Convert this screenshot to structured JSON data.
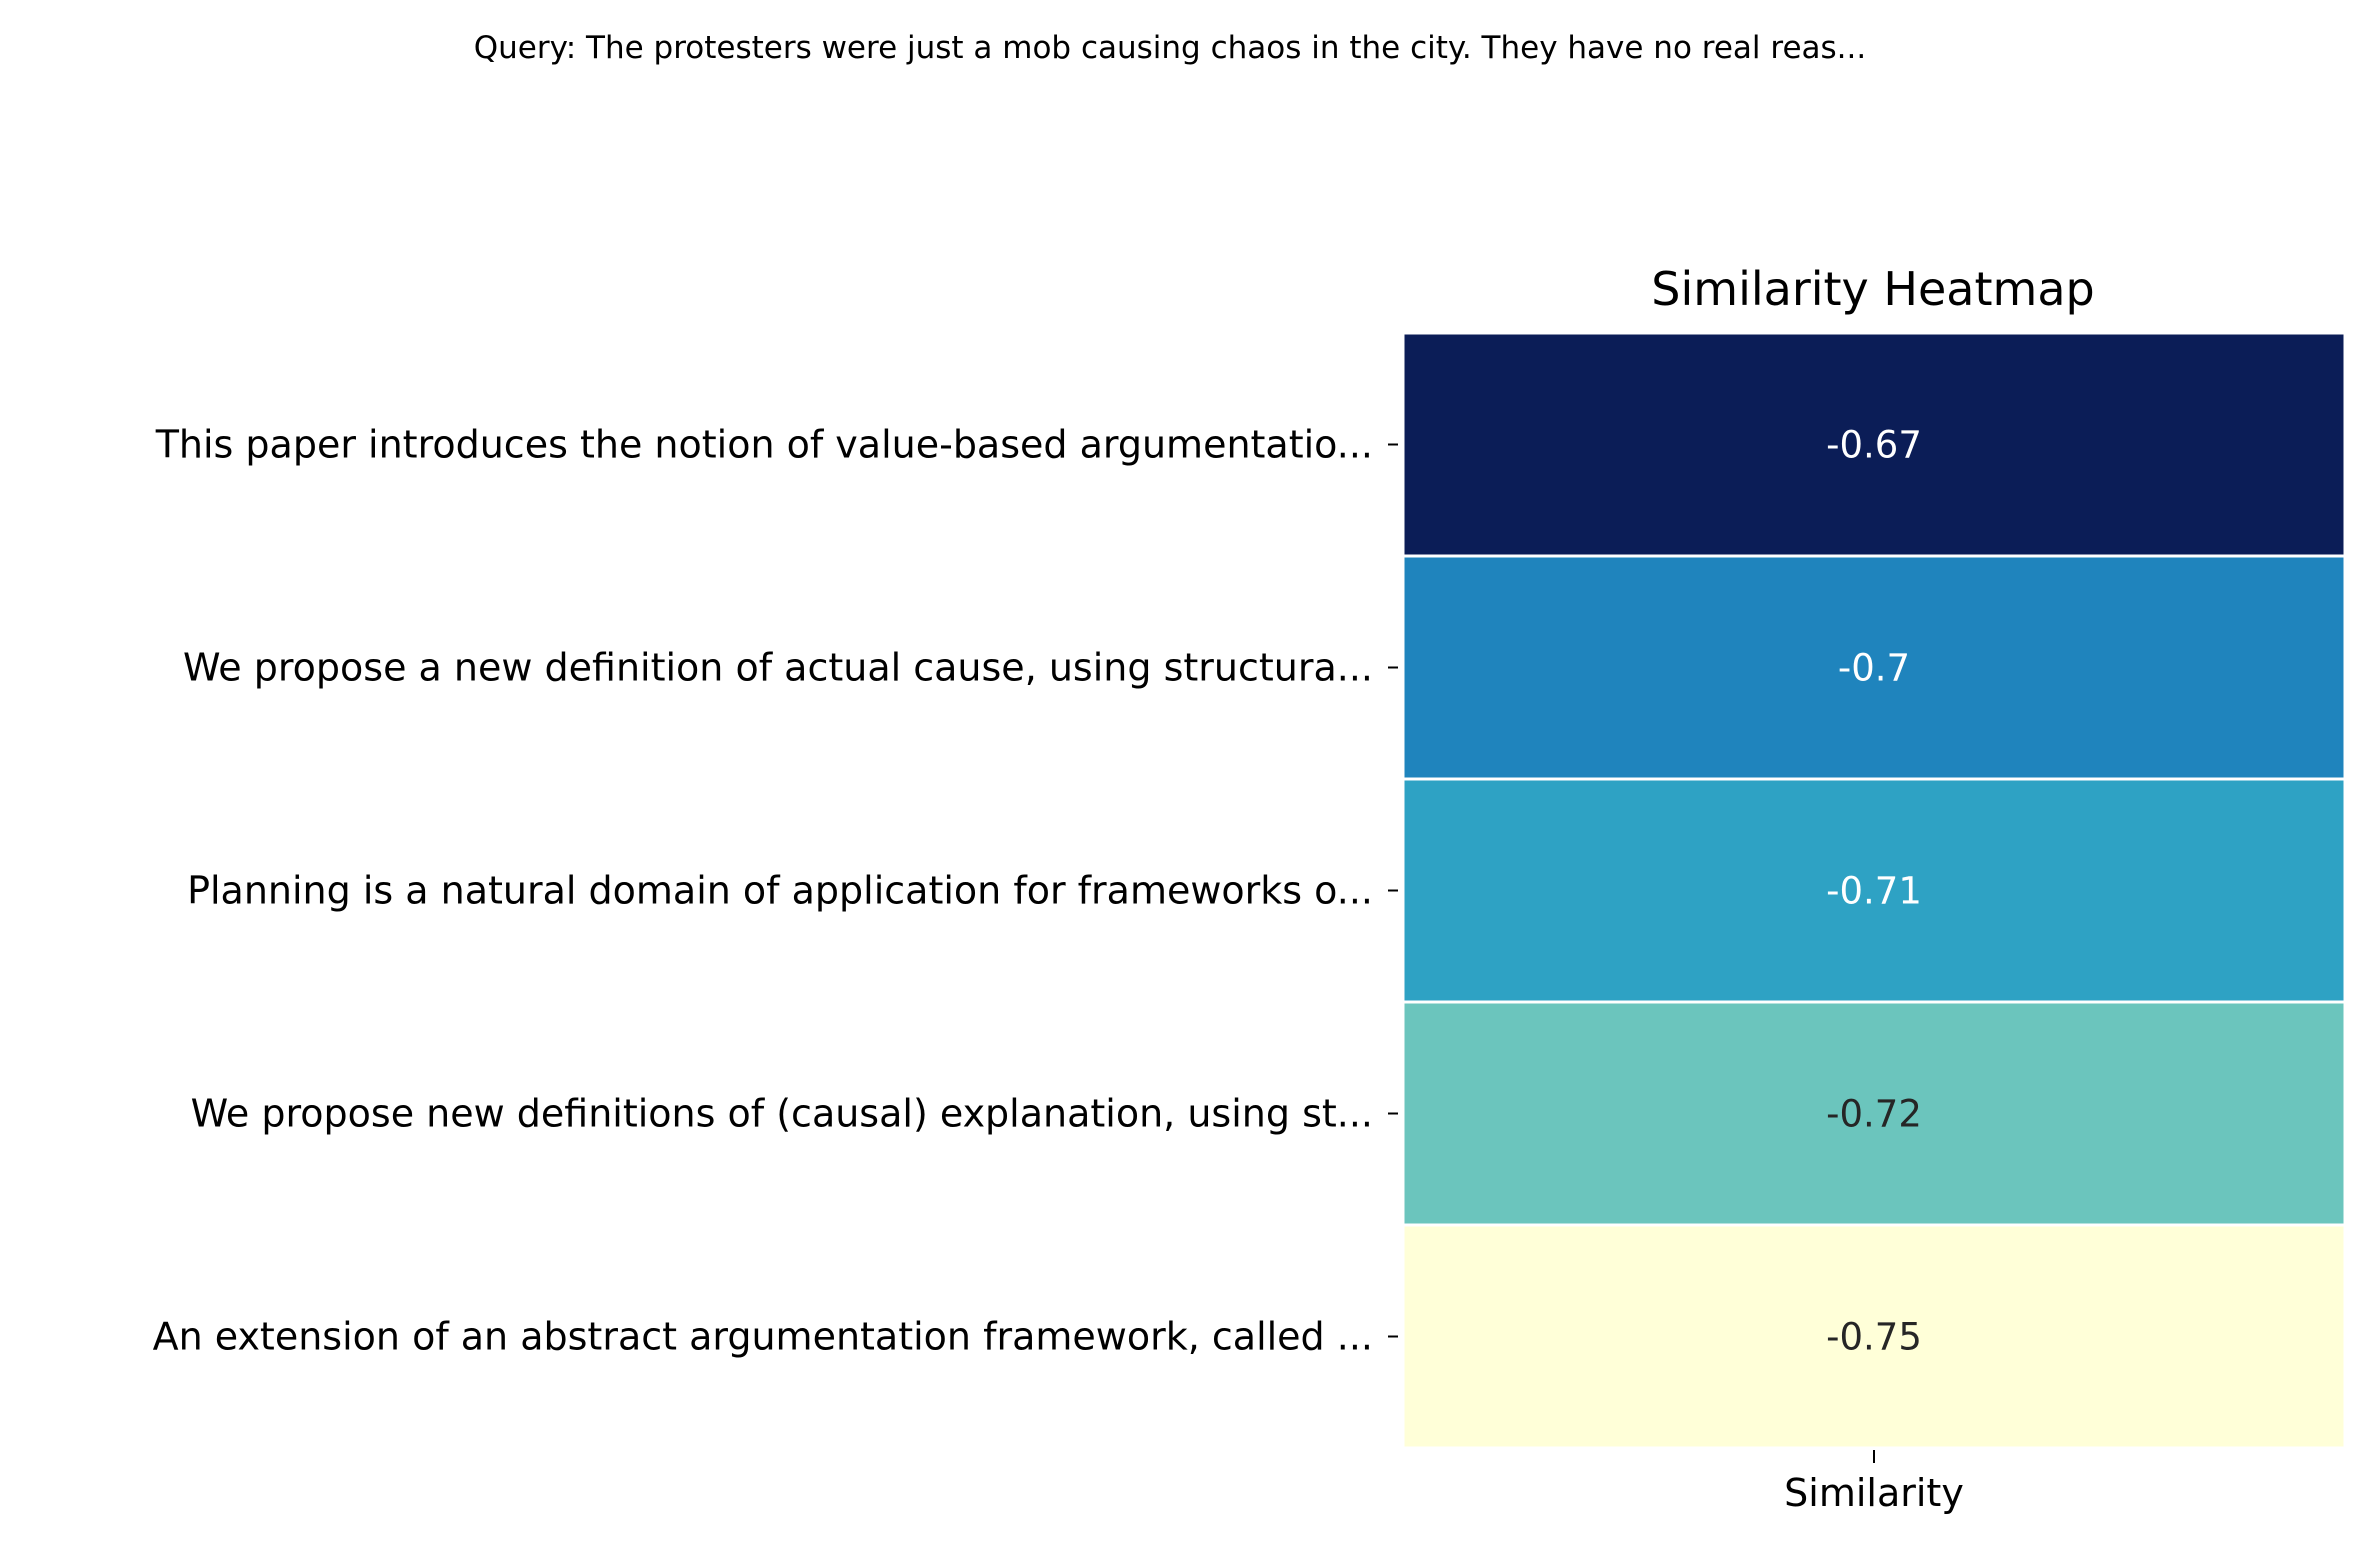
{
  "suptitle": "Query: The protesters were just a mob causing chaos in the city. They have no real reas...",
  "chart_data": {
    "type": "heatmap",
    "title": "Similarity Heatmap",
    "columns": [
      "Similarity"
    ],
    "rows": [
      "This paper introduces the notion of value-based argumentatio...",
      "We propose a new definition of actual cause, using structura...",
      "Planning is a natural domain of application for frameworks o...",
      "We propose new definitions of (causal) explanation, using st...",
      "An extension of an abstract argumentation framework, called ..."
    ],
    "values": [
      -0.67,
      -0.7,
      -0.71,
      -0.72,
      -0.75
    ],
    "value_labels": [
      "-0.67",
      "-0.7",
      "-0.71",
      "-0.72",
      "-0.75"
    ],
    "colormap": "YlGnBu",
    "cell_colors": [
      "#0b1d57",
      "#1f84bd",
      "#2ea2c4",
      "#6bc5bd",
      "#ffffd8"
    ],
    "label_colors": [
      "#ffffff",
      "#ffffff",
      "#ffffff",
      "#262626",
      "#262626"
    ],
    "colorbar": false
  }
}
